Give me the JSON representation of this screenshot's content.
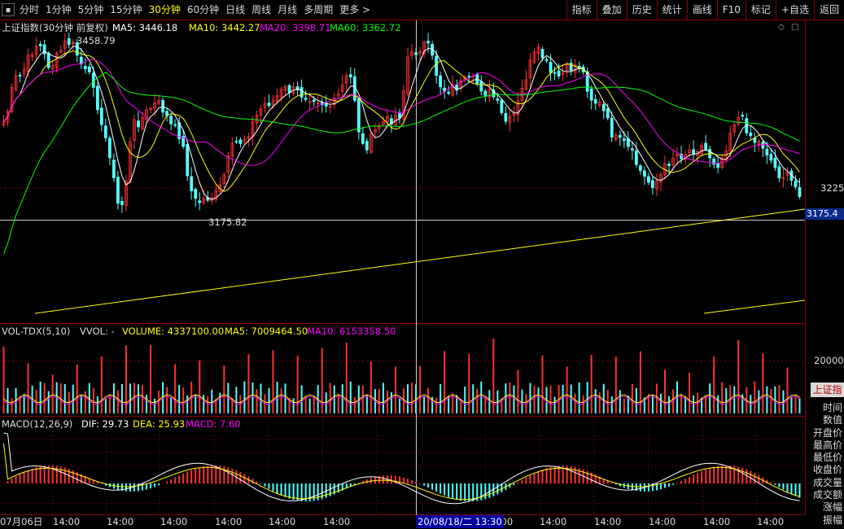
{
  "toolbar": {
    "periods": [
      "分时",
      "1分钟",
      "5分钟",
      "15分钟",
      "30分钟",
      "60分钟",
      "日线",
      "周线",
      "月线",
      "多周期",
      "更多 >"
    ],
    "active_period": "30分钟",
    "right_buttons": [
      "指标",
      "叠加",
      "历史",
      "统计",
      "画线",
      "F10",
      "标记",
      "+自选",
      "返回"
    ]
  },
  "price_panel": {
    "title": "上证指数(30分钟 前复权)",
    "ma5": "MA5: 3446.18",
    "ma10": "MA10: 3442.27",
    "ma20": "MA20: 3398.71",
    "ma60": "MA60: 3362.72",
    "high_label": "3458.79",
    "low_label": "3175.82",
    "right_tick": "3225",
    "price_tag": "3175.4"
  },
  "volume_panel": {
    "title": "VOL-TDX(5,10)",
    "vvol": "VVOL: -",
    "volume": "VOLUME: 4337100.00",
    "ma5": "MA5: 7009464.50",
    "ma10": "MA10: 6153358.50",
    "right_tick": "20000"
  },
  "macd_panel": {
    "title": "MACD(12,26,9)",
    "dif": "DIF: 29.73",
    "dea": "DEA: 25.93",
    "macd": "MACD: 7.60"
  },
  "side": {
    "tab": "上证指",
    "items": [
      "时间",
      "数值",
      "开盘价",
      "最高价",
      "最低价",
      "收盘价",
      "成交量",
      "成交额",
      "涨幅",
      "振幅"
    ]
  },
  "xaxis": {
    "first": "07月06日",
    "ticks": [
      "14:00",
      "14:00",
      "14:00",
      "14:00",
      "14:00",
      "14:00",
      "14:00",
      "14:00",
      "14:00",
      "14:00",
      "14:00",
      "14:00"
    ],
    "crosshair_date": "20/08/18/二 13:30"
  },
  "colors": {
    "up": "#ff3232",
    "down": "#54ffff",
    "ma5": "#ffffff",
    "ma10": "#ffff00",
    "ma20": "#ff00ff",
    "ma60": "#00ff00",
    "grid": "#8a0000"
  }
}
